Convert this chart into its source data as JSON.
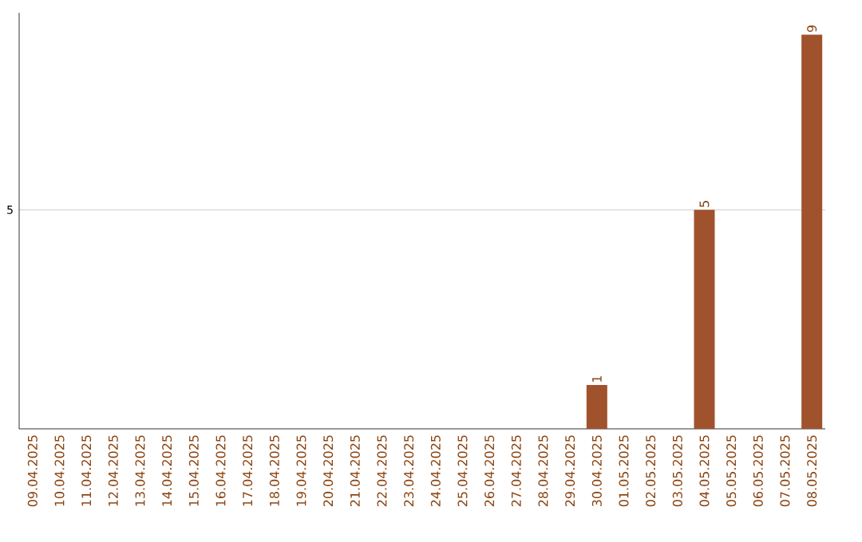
{
  "chart_data": {
    "type": "bar",
    "categories": [
      "09.04.2025",
      "10.04.2025",
      "11.04.2025",
      "12.04.2025",
      "13.04.2025",
      "14.04.2025",
      "15.04.2025",
      "16.04.2025",
      "17.04.2025",
      "18.04.2025",
      "19.04.2025",
      "20.04.2025",
      "21.04.2025",
      "22.04.2025",
      "23.04.2025",
      "24.04.2025",
      "25.04.2025",
      "26.04.2025",
      "27.04.2025",
      "28.04.2025",
      "29.04.2025",
      "30.04.2025",
      "01.05.2025",
      "02.05.2025",
      "03.05.2025",
      "04.05.2025",
      "05.05.2025",
      "06.05.2025",
      "07.05.2025",
      "08.05.2025"
    ],
    "values": [
      null,
      null,
      null,
      null,
      null,
      null,
      null,
      null,
      null,
      null,
      null,
      null,
      null,
      null,
      null,
      null,
      null,
      null,
      null,
      null,
      null,
      1,
      null,
      null,
      null,
      5,
      null,
      null,
      null,
      9
    ],
    "color": "#a0522d",
    "ylim": [
      0,
      9.5
    ],
    "yticks": [
      5
    ],
    "grid": "y",
    "data_labels": true
  }
}
